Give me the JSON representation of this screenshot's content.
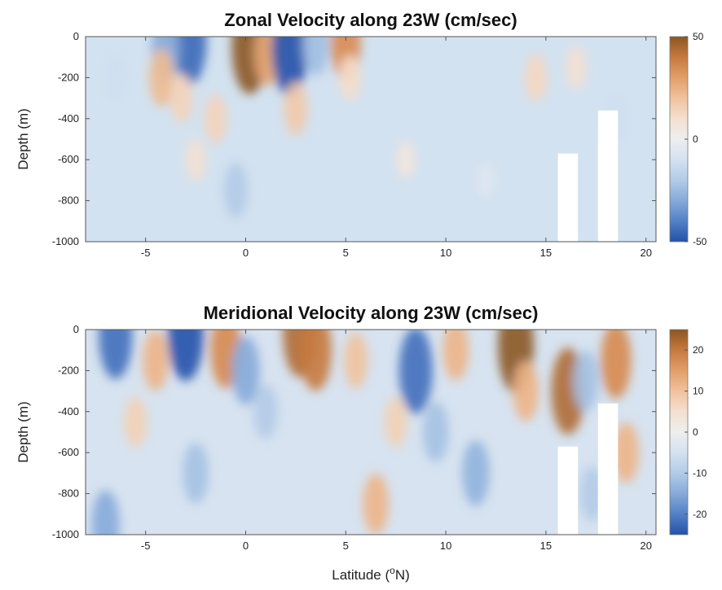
{
  "figure": {
    "xlabel_prefix": "Latitude (",
    "xlabel_sup": "o",
    "xlabel_suffix": "N)"
  },
  "chart_data": [
    {
      "type": "heatmap",
      "title": "Zonal Velocity along 23W (cm/sec)",
      "ylabel": "Depth (m)",
      "xlim": [
        -8,
        20.5
      ],
      "ylim": [
        -1000,
        0
      ],
      "x_ticks": [
        -5,
        0,
        5,
        10,
        15,
        20
      ],
      "y_ticks": [
        0,
        -200,
        -400,
        -600,
        -800,
        -1000
      ],
      "colorbar": {
        "range": [
          -50,
          50
        ],
        "ticks": [
          50,
          0,
          -50
        ]
      },
      "grid": false,
      "features": [
        {
          "lat": -2.8,
          "depth": -20,
          "value": -45
        },
        {
          "lat": -4.0,
          "depth": -60,
          "value": -30
        },
        {
          "lat": -4.2,
          "depth": -200,
          "value": 22
        },
        {
          "lat": -3.2,
          "depth": -300,
          "value": 15
        },
        {
          "lat": 0.2,
          "depth": -50,
          "value": 50
        },
        {
          "lat": 1.1,
          "depth": -80,
          "value": 28
        },
        {
          "lat": 2.2,
          "depth": -60,
          "value": -50
        },
        {
          "lat": 3.5,
          "depth": -40,
          "value": -25
        },
        {
          "lat": 2.5,
          "depth": -350,
          "value": 18
        },
        {
          "lat": 5.0,
          "depth": -30,
          "value": 35
        },
        {
          "lat": 5.2,
          "depth": -200,
          "value": 12
        },
        {
          "lat": -0.5,
          "depth": -750,
          "value": -20
        },
        {
          "lat": -1.5,
          "depth": -400,
          "value": 15
        },
        {
          "lat": -6.5,
          "depth": -200,
          "value": -12
        },
        {
          "lat": -2.5,
          "depth": -600,
          "value": 10
        },
        {
          "lat": 14.5,
          "depth": -200,
          "value": 14
        },
        {
          "lat": 16.5,
          "depth": -150,
          "value": 10
        },
        {
          "lat": 18.5,
          "depth": -400,
          "value": -12
        },
        {
          "lat": 8.0,
          "depth": -600,
          "value": 6
        },
        {
          "lat": 12.0,
          "depth": -700,
          "value": -6
        }
      ],
      "gaps": [
        {
          "lat_min": 15.6,
          "lat_max": 16.6,
          "depth_top": -570,
          "depth_bottom": -1000
        },
        {
          "lat_min": 17.6,
          "lat_max": 18.6,
          "depth_top": -360,
          "depth_bottom": -1000
        }
      ]
    },
    {
      "type": "heatmap",
      "title": "Meridional Velocity along 23W (cm/sec)",
      "ylabel": "Depth (m)",
      "xlim": [
        -8,
        20.5
      ],
      "ylim": [
        -1000,
        0
      ],
      "x_ticks": [
        -5,
        0,
        5,
        10,
        15,
        20
      ],
      "y_ticks": [
        0,
        -200,
        -400,
        -600,
        -800,
        -1000
      ],
      "colorbar": {
        "range": [
          -25,
          25
        ],
        "ticks": [
          20,
          10,
          0,
          -10,
          -20
        ]
      },
      "grid": false,
      "features": [
        {
          "lat": -6.5,
          "depth": -30,
          "value": -22
        },
        {
          "lat": -3.0,
          "depth": -20,
          "value": -25
        },
        {
          "lat": -4.5,
          "depth": -150,
          "value": 12
        },
        {
          "lat": -5.5,
          "depth": -450,
          "value": 8
        },
        {
          "lat": -1.0,
          "depth": -100,
          "value": 18
        },
        {
          "lat": 0.0,
          "depth": -200,
          "value": -15
        },
        {
          "lat": 1.0,
          "depth": -400,
          "value": -10
        },
        {
          "lat": 2.7,
          "depth": -20,
          "value": 22
        },
        {
          "lat": 3.5,
          "depth": -100,
          "value": 20
        },
        {
          "lat": 5.5,
          "depth": -150,
          "value": 10
        },
        {
          "lat": 6.5,
          "depth": -850,
          "value": 12
        },
        {
          "lat": 8.5,
          "depth": -200,
          "value": -22
        },
        {
          "lat": 9.5,
          "depth": -500,
          "value": -12
        },
        {
          "lat": 10.5,
          "depth": -100,
          "value": 12
        },
        {
          "lat": 11.5,
          "depth": -700,
          "value": -14
        },
        {
          "lat": 13.5,
          "depth": -80,
          "value": 25
        },
        {
          "lat": 14.0,
          "depth": -300,
          "value": 12
        },
        {
          "lat": 16.1,
          "depth": -300,
          "value": 22
        },
        {
          "lat": 17.0,
          "depth": -250,
          "value": -12
        },
        {
          "lat": 18.5,
          "depth": -150,
          "value": 18
        },
        {
          "lat": 19.0,
          "depth": -600,
          "value": 12
        },
        {
          "lat": 17.3,
          "depth": -800,
          "value": -10
        },
        {
          "lat": -7.0,
          "depth": -950,
          "value": -15
        },
        {
          "lat": -2.5,
          "depth": -700,
          "value": -12
        },
        {
          "lat": 7.5,
          "depth": -450,
          "value": 8
        }
      ],
      "gaps": [
        {
          "lat_min": 15.6,
          "lat_max": 16.6,
          "depth_top": -570,
          "depth_bottom": -1000
        },
        {
          "lat_min": 17.6,
          "lat_max": 18.6,
          "depth_top": -360,
          "depth_bottom": -1000
        }
      ]
    }
  ]
}
